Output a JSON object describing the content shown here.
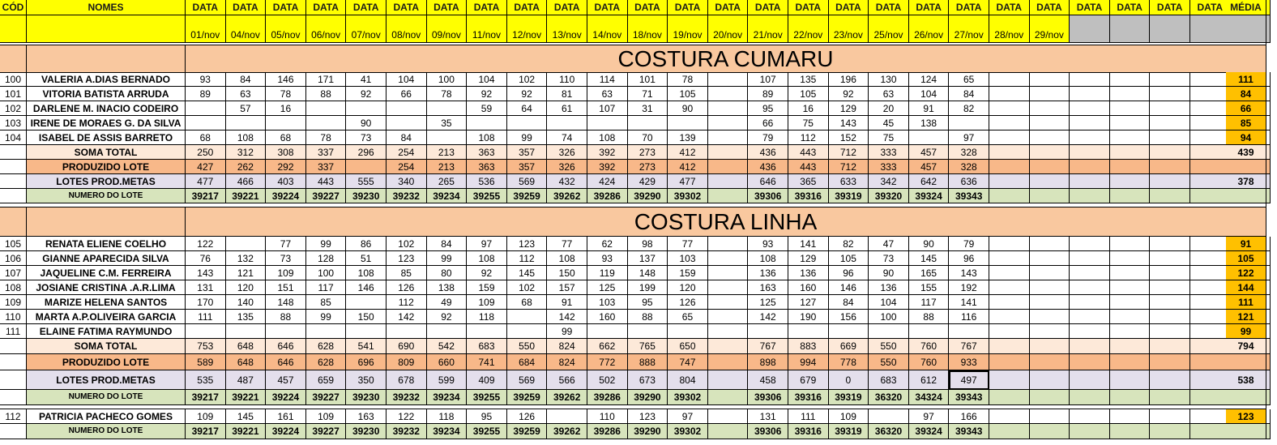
{
  "colors": {
    "header_yellow": "#ffff00",
    "section_orange": "#f9c89f",
    "soma_row": "#fde9d9",
    "produzido_row": "#f8b889",
    "metas_row": "#e4dfec",
    "lote_row": "#d7e4bc",
    "media_highlight": "#ffc000",
    "white": "#ffffff",
    "gray": "#bfbfbf"
  },
  "header": {
    "cod": "CÓD",
    "nomes": "NOMES",
    "data_label": "DATA",
    "media": "MÉDIA",
    "dates": [
      "01/nov",
      "04/nov",
      "05/nov",
      "06/nov",
      "07/nov",
      "08/nov",
      "09/nov",
      "11/nov",
      "12/nov",
      "13/nov",
      "14/nov",
      "18/nov",
      "19/nov",
      "20/nov",
      "21/nov",
      "22/nov",
      "23/nov",
      "25/nov",
      "26/nov",
      "27/nov",
      "28/nov",
      "29/nov",
      "",
      "",
      "",
      "",
      ""
    ]
  },
  "sections": [
    {
      "title": "COSTURA CUMARU",
      "workers": [
        {
          "cod": "100",
          "name": "VALERIA A.DIAS BERNADO",
          "values": [
            "93",
            "84",
            "146",
            "171",
            "41",
            "104",
            "100",
            "104",
            "102",
            "110",
            "114",
            "101",
            "78",
            "",
            "107",
            "135",
            "196",
            "130",
            "124",
            "65",
            "",
            "",
            "",
            "",
            "",
            "",
            ""
          ],
          "media": "111"
        },
        {
          "cod": "101",
          "name": "VITORIA BATISTA ARRUDA",
          "values": [
            "89",
            "63",
            "78",
            "88",
            "92",
            "66",
            "78",
            "92",
            "92",
            "81",
            "63",
            "71",
            "105",
            "",
            "89",
            "105",
            "92",
            "63",
            "104",
            "84",
            "",
            "",
            "",
            "",
            "",
            "",
            ""
          ],
          "media": "84"
        },
        {
          "cod": "102",
          "name": "DARLENE M. INACIO CODEIRO",
          "values": [
            "",
            "57",
            "16",
            "",
            "",
            "",
            "",
            "59",
            "64",
            "61",
            "107",
            "31",
            "90",
            "",
            "95",
            "16",
            "129",
            "20",
            "91",
            "82",
            "",
            "",
            "",
            "",
            "",
            "",
            ""
          ],
          "media": "66"
        },
        {
          "cod": "103",
          "name": "IRENE DE MORAES G. DA SILVA",
          "values": [
            "",
            "",
            "",
            "",
            "90",
            "",
            "35",
            "",
            "",
            "",
            "",
            "",
            "",
            "",
            "66",
            "75",
            "143",
            "45",
            "138",
            "",
            "",
            "",
            "",
            "",
            "",
            "",
            ""
          ],
          "media": "85"
        },
        {
          "cod": "104",
          "name": "ISABEL DE ASSIS BARRETO",
          "values": [
            "68",
            "108",
            "68",
            "78",
            "73",
            "84",
            "",
            "108",
            "99",
            "74",
            "108",
            "70",
            "139",
            "",
            "79",
            "112",
            "152",
            "75",
            "",
            "97",
            "",
            "",
            "",
            "",
            "",
            "",
            ""
          ],
          "media": "94"
        }
      ],
      "soma": {
        "label": "SOMA TOTAL",
        "values": [
          "250",
          "312",
          "308",
          "337",
          "296",
          "254",
          "213",
          "363",
          "357",
          "326",
          "392",
          "273",
          "412",
          "",
          "436",
          "443",
          "712",
          "333",
          "457",
          "328",
          "",
          "",
          "",
          "",
          "",
          "",
          ""
        ],
        "media": "439"
      },
      "produzido": {
        "label": "PRODUZIDO LOTE",
        "values": [
          "427",
          "262",
          "292",
          "337",
          "",
          "254",
          "213",
          "363",
          "357",
          "326",
          "392",
          "273",
          "412",
          "",
          "436",
          "443",
          "712",
          "333",
          "457",
          "328",
          "",
          "",
          "",
          "",
          "",
          "",
          ""
        ],
        "media": ""
      },
      "metas": {
        "label": "LOTES PROD.METAS",
        "values": [
          "477",
          "466",
          "403",
          "443",
          "555",
          "340",
          "265",
          "536",
          "569",
          "432",
          "424",
          "429",
          "477",
          "",
          "646",
          "365",
          "633",
          "342",
          "642",
          "636",
          "",
          "",
          "",
          "",
          "",
          "",
          ""
        ],
        "media": "378"
      },
      "lote": {
        "label": "NUMERO DO LOTE",
        "values": [
          "39217",
          "39221",
          "39224",
          "39227",
          "39230",
          "39232",
          "39234",
          "39255",
          "39259",
          "39262",
          "39286",
          "39290",
          "39302",
          "",
          "39306",
          "39316",
          "39319",
          "39320",
          "39324",
          "39343",
          "",
          "",
          "",
          "",
          "",
          "",
          ""
        ],
        "media": ""
      }
    },
    {
      "title": "COSTURA LINHA",
      "workers": [
        {
          "cod": "105",
          "name": "RENATA ELIENE COELHO",
          "values": [
            "122",
            "",
            "77",
            "99",
            "86",
            "102",
            "84",
            "97",
            "123",
            "77",
            "62",
            "98",
            "77",
            "",
            "93",
            "141",
            "82",
            "47",
            "90",
            "79",
            "",
            "",
            "",
            "",
            "",
            "",
            ""
          ],
          "media": "91"
        },
        {
          "cod": "106",
          "name": "GIANNE APARECIDA SILVA",
          "values": [
            "76",
            "132",
            "73",
            "128",
            "51",
            "123",
            "99",
            "108",
            "112",
            "108",
            "93",
            "137",
            "103",
            "",
            "108",
            "129",
            "105",
            "73",
            "145",
            "96",
            "",
            "",
            "",
            "",
            "",
            "",
            ""
          ],
          "media": "105"
        },
        {
          "cod": "107",
          "name": "JAQUELINE C.M. FERREIRA",
          "values": [
            "143",
            "121",
            "109",
            "100",
            "108",
            "85",
            "80",
            "92",
            "145",
            "150",
            "119",
            "148",
            "159",
            "",
            "136",
            "136",
            "96",
            "90",
            "165",
            "143",
            "",
            "",
            "",
            "",
            "",
            "",
            ""
          ],
          "media": "122"
        },
        {
          "cod": "108",
          "name": "JOSIANE CRISTINA .A.R.LIMA",
          "values": [
            "131",
            "120",
            "151",
            "117",
            "146",
            "126",
            "138",
            "159",
            "102",
            "157",
            "125",
            "199",
            "120",
            "",
            "163",
            "160",
            "146",
            "136",
            "155",
            "192",
            "",
            "",
            "",
            "",
            "",
            "",
            ""
          ],
          "media": "144"
        },
        {
          "cod": "109",
          "name": "MARIZE HELENA SANTOS",
          "values": [
            "170",
            "140",
            "148",
            "85",
            "",
            "112",
            "49",
            "109",
            "68",
            "91",
            "103",
            "95",
            "126",
            "",
            "125",
            "127",
            "84",
            "104",
            "117",
            "141",
            "",
            "",
            "",
            "",
            "",
            "",
            ""
          ],
          "media": "111"
        },
        {
          "cod": "110",
          "name": "MARTA A.P.OLIVEIRA GARCIA",
          "values": [
            "111",
            "135",
            "88",
            "99",
            "150",
            "142",
            "92",
            "118",
            "",
            "142",
            "160",
            "88",
            "65",
            "",
            "142",
            "190",
            "156",
            "100",
            "88",
            "116",
            "",
            "",
            "",
            "",
            "",
            "",
            ""
          ],
          "media": "121"
        },
        {
          "cod": "111",
          "name": "ELAINE FATIMA RAYMUNDO",
          "values": [
            "",
            "",
            "",
            "",
            "",
            "",
            "",
            "",
            "",
            "99",
            "",
            "",
            "",
            "",
            "",
            "",
            "",
            "",
            "",
            "",
            "",
            "",
            "",
            "",
            "",
            "",
            ""
          ],
          "media": "99"
        }
      ],
      "soma": {
        "label": "SOMA TOTAL",
        "values": [
          "753",
          "648",
          "646",
          "628",
          "541",
          "690",
          "542",
          "683",
          "550",
          "824",
          "662",
          "765",
          "650",
          "",
          "767",
          "883",
          "669",
          "550",
          "760",
          "767",
          "",
          "",
          "",
          "",
          "",
          "",
          ""
        ],
        "media": "794"
      },
      "produzido": {
        "label": "PRODUZIDO LOTE",
        "values": [
          "589",
          "648",
          "646",
          "628",
          "696",
          "809",
          "660",
          "741",
          "684",
          "824",
          "772",
          "888",
          "747",
          "",
          "898",
          "994",
          "778",
          "550",
          "760",
          "933",
          "",
          "",
          "",
          "",
          "",
          "",
          ""
        ],
        "media": ""
      },
      "metas": {
        "label": "LOTES PROD.METAS",
        "values": [
          "535",
          "487",
          "457",
          "659",
          "350",
          "678",
          "599",
          "409",
          "569",
          "566",
          "502",
          "673",
          "804",
          "",
          "458",
          "679",
          "0",
          "683",
          "612",
          "497",
          "",
          "",
          "",
          "",
          "",
          "",
          ""
        ],
        "media": "538"
      },
      "lote": {
        "label": "NUMERO DO LOTE",
        "values": [
          "39217",
          "39221",
          "39224",
          "39227",
          "39230",
          "39232",
          "39234",
          "39255",
          "39259",
          "39262",
          "39286",
          "39290",
          "39302",
          "",
          "39306",
          "39316",
          "39319",
          "36320",
          "34324",
          "39343",
          "",
          "",
          "",
          "",
          "",
          "",
          ""
        ],
        "media": ""
      }
    }
  ],
  "extra": {
    "worker": {
      "cod": "112",
      "name": "PATRICIA PACHECO GOMES",
      "values": [
        "109",
        "145",
        "161",
        "109",
        "163",
        "122",
        "118",
        "95",
        "126",
        "",
        "110",
        "123",
        "97",
        "",
        "131",
        "111",
        "109",
        "",
        "97",
        "166",
        "",
        "",
        "",
        "",
        "",
        "",
        ""
      ],
      "media": "123"
    },
    "lote": {
      "label": "NUMERO DO LOTE",
      "values": [
        "39217",
        "39221",
        "39224",
        "39227",
        "39230",
        "39232",
        "39234",
        "39255",
        "39259",
        "39262",
        "39286",
        "39290",
        "39302",
        "",
        "39306",
        "39316",
        "39319",
        "36320",
        "39324",
        "39343",
        "",
        "",
        "",
        "",
        "",
        "",
        ""
      ],
      "media": ""
    }
  }
}
